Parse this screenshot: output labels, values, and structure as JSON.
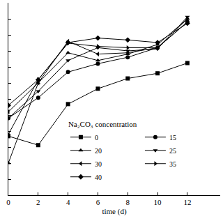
{
  "chart_data": {
    "type": "line",
    "x_label": "time (d)",
    "legend_title": "Na₂CO₃ concentration",
    "x": [
      0,
      2,
      4,
      6,
      8,
      10,
      12
    ],
    "series": [
      {
        "name": "0",
        "color": "#000000",
        "marker": "square",
        "line_style": "solid",
        "values": [
          3.68,
          3.12,
          5.68,
          6.64,
          7.28,
          7.6,
          8.24
        ]
      },
      {
        "name": "15",
        "color": "#000000",
        "marker": "circle",
        "line_style": "solid",
        "values": [
          4.8,
          6.08,
          7.68,
          8.2,
          8.6,
          9.2,
          10.8
        ]
      },
      {
        "name": "20",
        "color": "#000000",
        "marker": "triangle-up",
        "line_style": "solid",
        "values": [
          2,
          7,
          8.88,
          8.4,
          8.8,
          9.4,
          11
        ]
      },
      {
        "name": "25",
        "color": "#000000",
        "marker": "triangle-down",
        "line_style": "solid",
        "values": [
          4.8,
          6.48,
          8.4,
          9.2,
          9,
          9.12,
          11.12
        ]
      },
      {
        "name": "30",
        "color": "#000000",
        "marker": "triangle-left",
        "line_style": "solid",
        "values": [
          5.2,
          7,
          9.6,
          8.8,
          8.88,
          9.2,
          10.8
        ]
      },
      {
        "name": "35",
        "color": "#000000",
        "marker": "triangle-right",
        "line_style": "solid",
        "values": [
          3.8,
          7.2,
          9.48,
          9.28,
          9.2,
          9.2,
          11
        ]
      },
      {
        "name": "40",
        "color": "#000000",
        "marker": "diamond",
        "line_style": "solid",
        "values": [
          5.6,
          7.2,
          9.52,
          9.8,
          9.68,
          9.52,
          10.72
        ]
      }
    ],
    "xlim": [
      0,
      14.2
    ],
    "xticks": [
      0,
      2,
      4,
      6,
      8,
      10,
      12
    ],
    "ylim": [
      0,
      12
    ],
    "yticks": [
      0,
      1,
      2,
      3,
      4,
      5,
      6,
      7,
      8,
      9,
      10,
      11,
      12
    ],
    "tick_labels": "x",
    "grid": false,
    "legend": "lower right"
  }
}
